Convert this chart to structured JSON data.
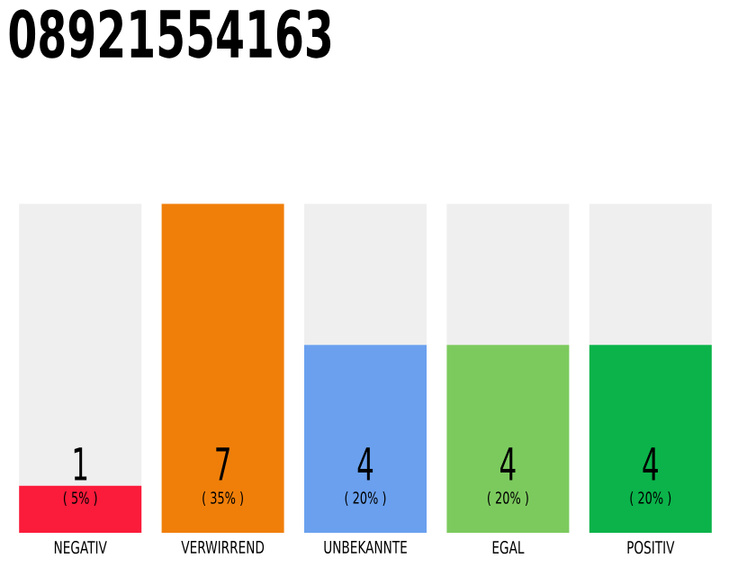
{
  "chart_data": {
    "type": "bar",
    "title": "08921554163",
    "stacked": true,
    "categories": [
      "NEGATIV",
      "VERWIRREND",
      "UNBEKANNTE",
      "EGAL",
      "POSITIV"
    ],
    "series": [
      {
        "colors": [
          "#fb1b3b",
          "#f07f0a",
          "#6aa0ee",
          "#7cca5e",
          "#0bb34a"
        ],
        "values": [
          1,
          7,
          4,
          4,
          4
        ],
        "value_labels": [
          "1",
          "7",
          "4",
          "4",
          "4"
        ]
      },
      {
        "color": "#efefef",
        "values": [
          6,
          0,
          3,
          3,
          3
        ]
      }
    ],
    "tick_labels": "x",
    "annotations": [
      "( 5% )",
      "( 35% )",
      "( 20% )",
      "( 20% )",
      "( 20% )"
    ]
  }
}
